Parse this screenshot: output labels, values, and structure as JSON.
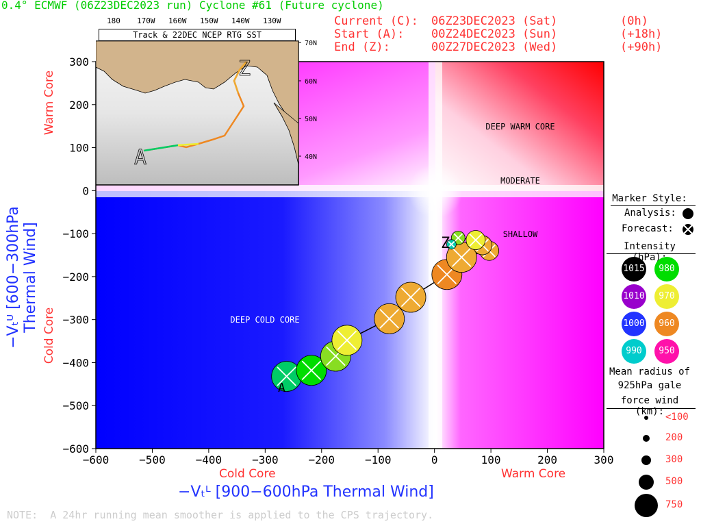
{
  "header": {
    "title": "0.4° ECMWF (06Z23DEC2023 run) Cyclone #61 (Future cyclone)",
    "current_label": "Current (C):",
    "current_value": "06Z23DEC2023 (Sat)",
    "current_offset": "(0h)",
    "start_label": "Start (A):",
    "start_value": "00Z24DEC2023 (Sun)",
    "start_offset": "(+18h)",
    "end_label": "End (Z):",
    "end_value": "00Z27DEC2023 (Wed)",
    "end_offset": "(+90h)"
  },
  "note": "NOTE:  A 24hr running mean smoother is applied to the CPS trajectory.",
  "inset": {
    "title": "Track & 22DEC NCEP RTG SST",
    "lon_labels": [
      "180",
      "170W",
      "160W",
      "150W",
      "140W",
      "130W"
    ],
    "lat_labels": [
      "70N",
      "60N",
      "50N",
      "40N"
    ],
    "start_marker": "A",
    "end_marker": "Z"
  },
  "legend": {
    "marker_style": "Marker Style:",
    "analysis": "Analysis:",
    "forecast": "Forecast:",
    "intensity_title": "Intensity (hPa):",
    "intensity": [
      {
        "label": "1015",
        "color": "#000000"
      },
      {
        "label": "980",
        "color": "#00dd00"
      },
      {
        "label": "1010",
        "color": "#9900cc"
      },
      {
        "label": "970",
        "color": "#eeee33"
      },
      {
        "label": "1000",
        "color": "#2233ff"
      },
      {
        "label": "960",
        "color": "#ee8822"
      },
      {
        "label": "990",
        "color": "#00cccc"
      },
      {
        "label": "950",
        "color": "#ff11aa"
      }
    ],
    "radius_title_1": "Mean radius of",
    "radius_title_2": "925hPa gale",
    "radius_title_3": "force wind (km):",
    "radius": [
      "<100",
      "200",
      "300",
      "500",
      "750"
    ]
  },
  "chart_data": {
    "type": "scatter",
    "title": "",
    "xlabel": "−Vₜᴸ [900−600hPa Thermal Wind]",
    "ylabel": "−Vₜᵁ [600−300hPa Thermal Wind]",
    "xlim": [
      -600,
      300
    ],
    "ylim": [
      -600,
      300
    ],
    "xticks": [
      -600,
      -500,
      -400,
      -300,
      -200,
      -100,
      0,
      100,
      200,
      300
    ],
    "yticks": [
      -600,
      -500,
      -400,
      -300,
      -200,
      -100,
      0,
      100,
      200,
      300
    ],
    "x_side_labels": {
      "left": "Cold Core",
      "right": "Warm Core"
    },
    "y_side_labels": {
      "bottom": "Cold Core",
      "top": "Warm Core"
    },
    "region_labels": [
      "DEEP WARM CORE",
      "MODERATE",
      "SHALLOW",
      "DEEP COLD CORE"
    ],
    "start_marker": "A",
    "end_marker": "Z",
    "trajectory": [
      {
        "x": -262,
        "y": -432,
        "color": "#00cc66",
        "size": 500
      },
      {
        "x": -218,
        "y": -418,
        "color": "#00dd00",
        "size": 500
      },
      {
        "x": -175,
        "y": -385,
        "color": "#88dd22",
        "size": 500
      },
      {
        "x": -155,
        "y": -348,
        "color": "#eeee33",
        "size": 500
      },
      {
        "x": -80,
        "y": -298,
        "color": "#eeaa33",
        "size": 500
      },
      {
        "x": -42,
        "y": -248,
        "color": "#eeaa33",
        "size": 500
      },
      {
        "x": 22,
        "y": -195,
        "color": "#ee8822",
        "size": 500
      },
      {
        "x": 48,
        "y": -155,
        "color": "#eeaa33",
        "size": 500
      },
      {
        "x": 97,
        "y": -140,
        "color": "#eeaa33",
        "size": 300
      },
      {
        "x": 85,
        "y": -127,
        "color": "#eeaa33",
        "size": 300
      },
      {
        "x": 73,
        "y": -115,
        "color": "#eeee33",
        "size": 300
      },
      {
        "x": 42,
        "y": -110,
        "color": "#88dd22",
        "size": 200
      },
      {
        "x": 30,
        "y": -125,
        "color": "#00ccaa",
        "size": 100
      }
    ]
  }
}
